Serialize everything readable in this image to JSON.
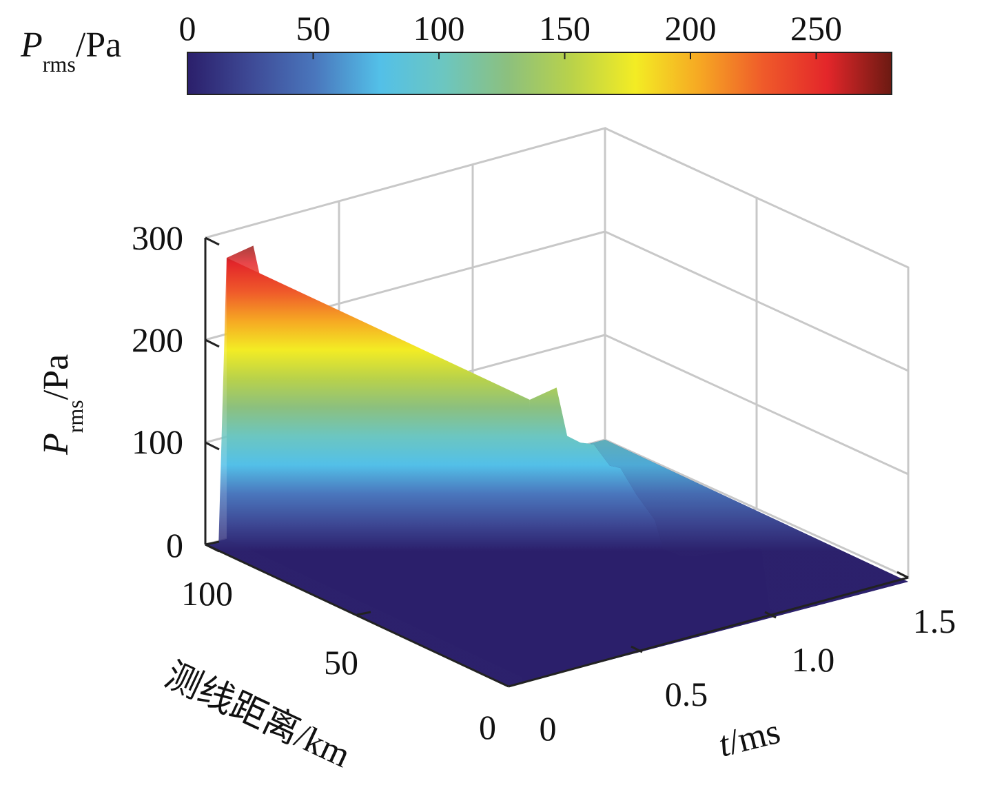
{
  "chart_data": {
    "type": "surface3d",
    "colorbar": {
      "label_main": "P",
      "label_sub": "rms",
      "label_unit": "/Pa",
      "range": [
        0,
        280
      ],
      "ticks": [
        0,
        50,
        100,
        150,
        200,
        250
      ],
      "colormap": [
        "#2b1f6b",
        "#3e4a96",
        "#4a77bd",
        "#53c0e8",
        "#6cc6c0",
        "#8cc07e",
        "#b9d24a",
        "#f3ec24",
        "#f6a823",
        "#ef5a2a",
        "#e3262a",
        "#6b1a12"
      ]
    },
    "z_axis": {
      "label_main": "P",
      "label_sub": "rms",
      "label_unit": "/Pa",
      "range": [
        0,
        300
      ],
      "ticks": [
        0,
        100,
        200,
        300
      ]
    },
    "y_axis": {
      "label": "测线距离/km",
      "range": [
        0,
        100
      ],
      "ticks": [
        0,
        50,
        100
      ]
    },
    "x_axis": {
      "label_main": "t",
      "label_unit": "/ms",
      "range": [
        0,
        1.5
      ],
      "ticks": [
        "0",
        "0.5",
        "1.0",
        "1.5"
      ]
    },
    "profile": {
      "t": [
        0,
        0.05,
        0.08,
        0.18,
        0.22,
        0.27,
        0.32,
        0.38,
        0.42,
        0.48,
        0.55,
        0.58,
        0.64,
        0.7,
        0.76,
        0.83,
        0.9,
        0.95,
        0.98,
        1.02,
        1.5
      ],
      "p": [
        0,
        0,
        275,
        280,
        230,
        220,
        215,
        190,
        185,
        155,
        125,
        95,
        85,
        80,
        78,
        75,
        75,
        70,
        10,
        0,
        0
      ]
    }
  }
}
